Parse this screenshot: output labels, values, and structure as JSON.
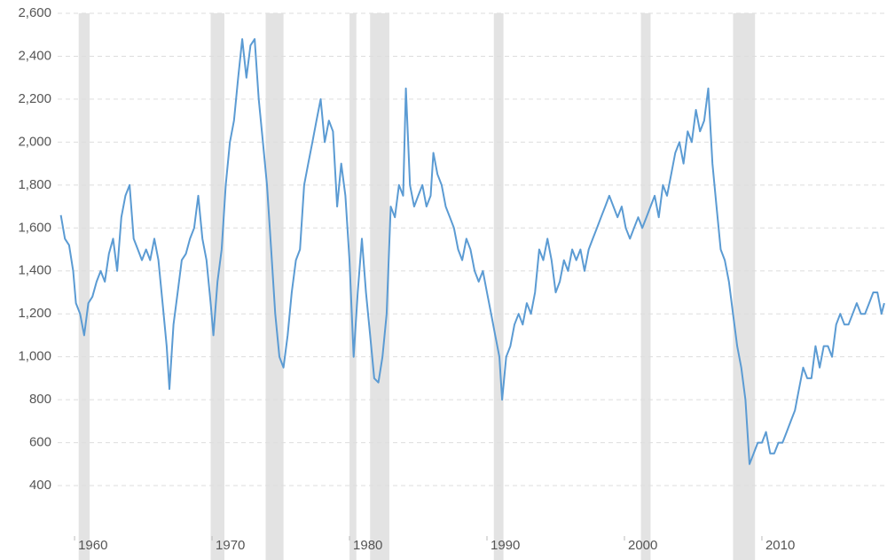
{
  "chart_data": {
    "type": "line",
    "xlim": [
      1958.77,
      2019.1
    ],
    "ylim": [
      200,
      2600
    ],
    "xticks": [
      1960,
      1970,
      1980,
      1990,
      2000,
      2010
    ],
    "yticks": [
      400,
      600,
      800,
      {
        "value": 1000,
        "label": "1,000"
      },
      {
        "value": 1200,
        "label": "1,200"
      },
      {
        "value": 1400,
        "label": "1,400"
      },
      {
        "value": 1600,
        "label": "1,600"
      },
      {
        "value": 1800,
        "label": "1,800"
      },
      {
        "value": 2000,
        "label": "2,000"
      },
      {
        "value": 2200,
        "label": "2,200"
      },
      {
        "value": 2400,
        "label": "2,400"
      },
      {
        "value": 2600,
        "label": "2,600"
      }
    ],
    "grid": true,
    "recession_color": "#e3e3e3",
    "recessions": [
      [
        1960.3,
        1961.1
      ],
      [
        1969.9,
        1970.9
      ],
      [
        1973.9,
        1975.2
      ],
      [
        1980.0,
        1980.5
      ],
      [
        1981.5,
        1982.9
      ],
      [
        1990.5,
        1991.2
      ],
      [
        2001.2,
        2001.9
      ],
      [
        2007.9,
        2009.5
      ]
    ],
    "series": [
      {
        "color": "#5b9bd3",
        "x": [
          1959.0,
          1959.3,
          1959.6,
          1959.9,
          1960.1,
          1960.4,
          1960.7,
          1961.0,
          1961.3,
          1961.6,
          1961.9,
          1962.2,
          1962.5,
          1962.8,
          1963.1,
          1963.4,
          1963.7,
          1964.0,
          1964.3,
          1964.6,
          1964.9,
          1965.2,
          1965.5,
          1965.8,
          1966.1,
          1966.4,
          1966.7,
          1966.9,
          1967.2,
          1967.5,
          1967.8,
          1968.1,
          1968.4,
          1968.7,
          1969.0,
          1969.3,
          1969.6,
          1969.9,
          1970.1,
          1970.4,
          1970.7,
          1971.0,
          1971.3,
          1971.6,
          1971.9,
          1972.2,
          1972.5,
          1972.8,
          1973.1,
          1973.4,
          1973.7,
          1974.0,
          1974.3,
          1974.6,
          1974.9,
          1975.2,
          1975.5,
          1975.8,
          1976.1,
          1976.4,
          1976.7,
          1977.0,
          1977.3,
          1977.6,
          1977.9,
          1978.2,
          1978.5,
          1978.8,
          1979.1,
          1979.4,
          1979.7,
          1980.0,
          1980.3,
          1980.6,
          1980.9,
          1981.2,
          1981.5,
          1981.8,
          1982.1,
          1982.4,
          1982.7,
          1983.0,
          1983.3,
          1983.6,
          1983.9,
          1984.1,
          1984.4,
          1984.7,
          1985.0,
          1985.3,
          1985.6,
          1985.9,
          1986.1,
          1986.4,
          1986.7,
          1987.0,
          1987.3,
          1987.6,
          1987.9,
          1988.2,
          1988.5,
          1988.8,
          1989.1,
          1989.4,
          1989.7,
          1990.0,
          1990.3,
          1990.6,
          1990.9,
          1991.1,
          1991.4,
          1991.7,
          1992.0,
          1992.3,
          1992.6,
          1992.9,
          1993.2,
          1993.5,
          1993.8,
          1994.1,
          1994.4,
          1994.7,
          1995.0,
          1995.3,
          1995.6,
          1995.9,
          1996.2,
          1996.5,
          1996.8,
          1997.1,
          1997.4,
          1997.7,
          1998.0,
          1998.3,
          1998.6,
          1998.9,
          1999.2,
          1999.5,
          1999.8,
          2000.1,
          2000.4,
          2000.7,
          2001.0,
          2001.3,
          2001.6,
          2001.9,
          2002.2,
          2002.5,
          2002.8,
          2003.1,
          2003.4,
          2003.7,
          2004.0,
          2004.3,
          2004.6,
          2004.9,
          2005.2,
          2005.5,
          2005.8,
          2006.1,
          2006.4,
          2006.7,
          2007.0,
          2007.3,
          2007.6,
          2007.9,
          2008.2,
          2008.5,
          2008.8,
          2009.1,
          2009.4,
          2009.7,
          2010.0,
          2010.3,
          2010.6,
          2010.9,
          2011.2,
          2011.5,
          2011.8,
          2012.1,
          2012.4,
          2012.7,
          2013.0,
          2013.3,
          2013.6,
          2013.9,
          2014.2,
          2014.5,
          2014.8,
          2015.1,
          2015.4,
          2015.7,
          2016.0,
          2016.3,
          2016.6,
          2016.9,
          2017.2,
          2017.5,
          2017.8,
          2018.1,
          2018.4,
          2018.7,
          2018.9
        ],
        "values": [
          1660,
          1550,
          1520,
          1400,
          1250,
          1200,
          1100,
          1250,
          1280,
          1350,
          1400,
          1350,
          1480,
          1550,
          1400,
          1650,
          1750,
          1800,
          1550,
          1500,
          1450,
          1500,
          1450,
          1550,
          1450,
          1250,
          1050,
          850,
          1150,
          1300,
          1450,
          1480,
          1550,
          1600,
          1750,
          1550,
          1450,
          1250,
          1100,
          1350,
          1500,
          1800,
          2000,
          2100,
          2300,
          2480,
          2300,
          2450,
          2480,
          2200,
          2000,
          1800,
          1500,
          1200,
          1000,
          950,
          1100,
          1300,
          1450,
          1500,
          1800,
          1900,
          2000,
          2100,
          2200,
          2000,
          2100,
          2050,
          1700,
          1900,
          1750,
          1450,
          1000,
          1300,
          1550,
          1300,
          1100,
          900,
          880,
          1000,
          1200,
          1700,
          1650,
          1800,
          1750,
          2250,
          1800,
          1700,
          1750,
          1800,
          1700,
          1750,
          1950,
          1850,
          1800,
          1700,
          1650,
          1600,
          1500,
          1450,
          1550,
          1500,
          1400,
          1350,
          1400,
          1300,
          1200,
          1100,
          1000,
          800,
          1000,
          1050,
          1150,
          1200,
          1150,
          1250,
          1200,
          1300,
          1500,
          1450,
          1550,
          1450,
          1300,
          1350,
          1450,
          1400,
          1500,
          1450,
          1500,
          1400,
          1500,
          1550,
          1600,
          1650,
          1700,
          1750,
          1700,
          1650,
          1700,
          1600,
          1550,
          1600,
          1650,
          1600,
          1650,
          1700,
          1750,
          1650,
          1800,
          1750,
          1850,
          1950,
          2000,
          1900,
          2050,
          2000,
          2150,
          2050,
          2100,
          2250,
          1900,
          1700,
          1500,
          1450,
          1350,
          1200,
          1050,
          950,
          800,
          500,
          550,
          600,
          600,
          650,
          550,
          550,
          600,
          600,
          650,
          700,
          750,
          850,
          950,
          900,
          900,
          1050,
          950,
          1050,
          1050,
          1000,
          1150,
          1200,
          1150,
          1150,
          1200,
          1250,
          1200,
          1200,
          1250,
          1300,
          1300,
          1200,
          1250
        ]
      }
    ]
  }
}
